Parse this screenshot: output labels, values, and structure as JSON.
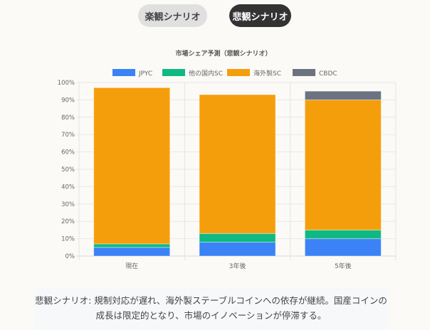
{
  "scenario_tabs": [
    {
      "label": "楽観シナリオ",
      "active": false
    },
    {
      "label": "悲観シナリオ",
      "active": true
    }
  ],
  "chart_data": {
    "type": "bar",
    "stacked": true,
    "title": "市場シェア予測（悲観シナリオ）",
    "categories": [
      "現在",
      "3年後",
      "5年後"
    ],
    "series": [
      {
        "name": "JPYC",
        "color": "#3b82f6",
        "values": [
          5,
          8,
          10
        ]
      },
      {
        "name": "他の国内SC",
        "color": "#10b981",
        "values": [
          2,
          5,
          5
        ]
      },
      {
        "name": "海外製SC",
        "color": "#f59e0b",
        "values": [
          90,
          80,
          75
        ]
      },
      {
        "name": "CBDC",
        "color": "#6b7280",
        "values": [
          0,
          0,
          5
        ]
      }
    ],
    "ylim": [
      0,
      100
    ],
    "yticks": [
      "0%",
      "10%",
      "20%",
      "30%",
      "40%",
      "50%",
      "60%",
      "70%",
      "80%",
      "90%",
      "100%"
    ],
    "grid": true,
    "legend": "top"
  },
  "description": "悲観シナリオ: 規制対応が遅れ、海外製ステーブルコインへの依存が継続。国産コインの成長は限定的となり、市場のイノベーションが停滞する。"
}
